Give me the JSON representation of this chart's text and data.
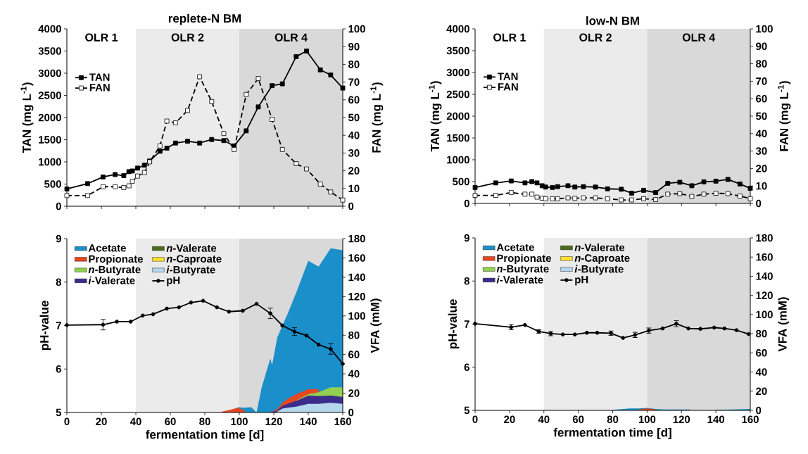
{
  "chart_data": [
    {
      "type": "line",
      "title": "replete-N BM",
      "ylabel": "TAN (mg L$^{-1}$)",
      "y2label": "FAN (mg L$^{-1}$)",
      "xlim": [
        0,
        160
      ],
      "tick_labels": "y",
      "xticks": [
        0,
        20,
        40,
        60,
        80,
        100,
        120,
        140,
        160
      ],
      "ylim": [
        0,
        4000
      ],
      "yticks": [
        0,
        500,
        1000,
        1500,
        2000,
        2500,
        3000,
        3500,
        4000
      ],
      "y2lim": [
        0,
        100
      ],
      "y2ticks": [
        0,
        10,
        20,
        30,
        40,
        50,
        60,
        70,
        80,
        90,
        100
      ],
      "legend": "top left",
      "annotations": [
        "OLR 1"
      ],
      "bands": [
        {
          "axis": "x",
          "from": 40,
          "to": 100,
          "label": "OLR 2",
          "color": "#ebebeb"
        },
        {
          "axis": "x",
          "from": 100,
          "to": 160,
          "label": "OLR 4",
          "color": "#d9d9d9"
        }
      ],
      "series": [
        {
          "name": "TAN",
          "color": "#000000",
          "marker": "square",
          "line_style": "solid",
          "x": [
            0,
            12,
            21,
            28,
            33,
            36,
            38,
            41,
            45,
            48,
            54,
            58,
            63,
            70,
            77,
            84,
            91,
            97,
            104,
            111,
            119,
            125,
            133,
            139,
            147,
            153,
            160
          ],
          "values": [
            390,
            510,
            660,
            715,
            690,
            780,
            795,
            860,
            925,
            1020,
            1240,
            1310,
            1425,
            1465,
            1425,
            1505,
            1480,
            1360,
            1700,
            2240,
            2720,
            2760,
            3375,
            3500,
            3075,
            2960,
            2665
          ]
        },
        {
          "name": "FAN",
          "color": "#000000",
          "marker": "square",
          "line_style": "dashed",
          "axis": "y2",
          "x": [
            0,
            12,
            21,
            28,
            33,
            36,
            38,
            41,
            45,
            48,
            54,
            58,
            63,
            70,
            77,
            84,
            91,
            97,
            104,
            111,
            119,
            125,
            133,
            139,
            147,
            153,
            160
          ],
          "values": [
            6,
            6,
            11,
            11,
            10.5,
            11.5,
            14,
            17,
            19,
            25,
            34,
            48,
            47,
            54,
            73,
            59,
            41,
            32,
            63,
            72,
            49,
            32,
            24,
            21,
            12.5,
            8,
            3.5
          ]
        }
      ]
    },
    {
      "type": "line",
      "title": "low-N BM",
      "ylabel": "TAN (mg L$^{-1}$)",
      "y2label": "FAN (mg L$^{-1}$)",
      "xlim": [
        0,
        160
      ],
      "tick_labels": "y",
      "xticks": [
        0,
        20,
        40,
        60,
        80,
        100,
        120,
        140,
        160
      ],
      "ylim": [
        0,
        4000
      ],
      "yticks": [
        0,
        500,
        1000,
        1500,
        2000,
        2500,
        3000,
        3500,
        4000
      ],
      "y2lim": [
        0,
        100
      ],
      "y2ticks": [
        0,
        10,
        20,
        30,
        40,
        50,
        60,
        70,
        80,
        90,
        100
      ],
      "legend": "top left",
      "annotations": [
        "OLR 1"
      ],
      "bands": [
        {
          "axis": "x",
          "from": 40,
          "to": 100,
          "label": "OLR 2",
          "color": "#ebebeb"
        },
        {
          "axis": "x",
          "from": 100,
          "to": 160,
          "label": "OLR 4",
          "color": "#d9d9d9"
        }
      ],
      "series": [
        {
          "name": "TAN",
          "color": "#000000",
          "marker": "square",
          "line_style": "solid",
          "x": [
            0,
            12,
            21,
            29,
            33,
            36,
            39,
            41,
            45,
            48,
            54,
            58,
            63,
            70,
            77,
            85,
            91,
            98,
            105,
            112,
            119,
            126,
            133,
            140,
            147,
            154,
            160
          ],
          "values": [
            365,
            470,
            515,
            470,
            500,
            470,
            405,
            375,
            365,
            385,
            405,
            375,
            385,
            375,
            335,
            325,
            235,
            300,
            250,
            460,
            485,
            405,
            495,
            510,
            550,
            445,
            345
          ]
        },
        {
          "name": "FAN",
          "color": "#000000",
          "marker": "square",
          "line_style": "dashed",
          "axis": "y2",
          "x": [
            0,
            12,
            21,
            29,
            33,
            36,
            39,
            41,
            45,
            48,
            54,
            58,
            63,
            70,
            77,
            85,
            91,
            98,
            105,
            112,
            119,
            126,
            133,
            140,
            147,
            154,
            160
          ],
          "values": [
            4.6,
            4.6,
            6.2,
            5.3,
            5.3,
            3.6,
            3.0,
            2.7,
            2.7,
            2.7,
            3.2,
            2.9,
            3.2,
            3.2,
            2.7,
            2.0,
            2.0,
            2.7,
            2.2,
            5.3,
            5.6,
            4.0,
            5.3,
            5.8,
            5.6,
            4.2,
            2.7
          ]
        }
      ]
    },
    {
      "type": "area",
      "stacked": true,
      "xlabel": "fermentation time [d]",
      "ylabel": "pH-value",
      "y2label": "VFA (mM)",
      "xlim": [
        0,
        160
      ],
      "xticks": [
        0,
        20,
        40,
        60,
        80,
        100,
        120,
        140,
        160
      ],
      "ylim": [
        5,
        9
      ],
      "yticks": [
        5,
        6,
        7,
        8,
        9
      ],
      "y2lim": [
        0,
        180
      ],
      "y2ticks": [
        0,
        20,
        40,
        60,
        80,
        100,
        120,
        140,
        160,
        180
      ],
      "legend": "top left",
      "bands": [
        {
          "axis": "x",
          "from": 40,
          "to": 100,
          "color": "#ebebeb"
        },
        {
          "axis": "x",
          "from": 100,
          "to": 160,
          "color": "#d9d9d9"
        }
      ],
      "x": [
        90,
        95,
        99,
        103,
        107,
        110,
        113,
        115,
        118,
        119,
        122,
        125,
        128,
        133,
        140,
        146,
        153,
        160
      ],
      "series": [
        {
          "name": "*i*-Butyrate",
          "color": "#b4d7ee",
          "axis": "y2",
          "values": [
            null,
            null,
            null,
            null,
            null,
            null,
            null,
            null,
            null,
            null,
            1,
            4,
            5,
            6,
            9,
            9,
            10,
            9
          ]
        },
        {
          "name": "*n*-Caproate",
          "color": "#ffe033",
          "axis": "y2",
          "values": [
            null,
            null,
            null,
            null,
            null,
            null,
            null,
            null,
            null,
            null,
            null,
            null,
            null,
            null,
            null,
            null,
            null,
            null
          ]
        },
        {
          "name": "*n*-Valerate",
          "color": "#4a6b1a",
          "axis": "y2",
          "values": [
            null,
            null,
            null,
            null,
            null,
            null,
            null,
            null,
            null,
            null,
            null,
            null,
            null,
            null,
            null,
            null,
            null,
            null
          ]
        },
        {
          "name": "*i*-Valerate",
          "color": "#3b2d8c",
          "axis": "y2",
          "values": [
            null,
            null,
            null,
            null,
            null,
            null,
            null,
            null,
            0.5,
            0.5,
            1,
            3,
            4,
            6,
            8.5,
            8,
            7.5,
            7
          ]
        },
        {
          "name": "*n*-Butyrate",
          "color": "#92d050",
          "axis": "y2",
          "values": [
            null,
            null,
            null,
            null,
            null,
            null,
            null,
            null,
            null,
            null,
            null,
            null,
            null,
            0.5,
            1.5,
            4,
            8.5,
            10
          ]
        },
        {
          "name": "Propionate",
          "color": "#e8461e",
          "axis": "y2",
          "values": [
            1,
            3,
            5,
            2,
            null,
            null,
            null,
            null,
            0.5,
            0.5,
            1.5,
            3,
            5,
            6.5,
            5,
            3,
            null,
            null
          ]
        },
        {
          "name": "Acetate",
          "color": "#1a8fc9",
          "axis": "y2",
          "values": [
            null,
            null,
            0.5,
            3,
            5.5,
            0,
            26,
            38,
            55,
            48,
            74,
            80,
            88,
            105,
            133,
            127,
            144,
            142
          ]
        },
        {
          "name": "pH",
          "type": "line",
          "color": "#000000",
          "marker": "circle",
          "line_style": "solid",
          "axis": "y",
          "x": [
            0,
            21,
            29,
            37,
            44,
            50,
            58,
            65,
            72,
            79,
            87,
            94,
            102,
            110,
            118,
            125,
            132,
            139,
            146,
            153,
            160
          ],
          "values": [
            7.01,
            7.02,
            7.09,
            7.09,
            7.23,
            7.26,
            7.39,
            7.42,
            7.53,
            7.57,
            7.42,
            7.32,
            7.34,
            7.5,
            7.28,
            7.0,
            6.86,
            6.77,
            6.56,
            6.46,
            6.12
          ],
          "errors": [
            null,
            0.12,
            null,
            null,
            null,
            null,
            null,
            null,
            null,
            null,
            null,
            null,
            null,
            null,
            0.12,
            null,
            0.09,
            null,
            null,
            0.12,
            null
          ]
        }
      ]
    },
    {
      "type": "area",
      "stacked": true,
      "xlabel": "fermentation time [d]",
      "ylabel": "pH-value",
      "y2label": "VFA (mM)",
      "xlim": [
        0,
        160
      ],
      "xticks": [
        0,
        20,
        40,
        60,
        80,
        100,
        120,
        140,
        160
      ],
      "ylim": [
        5,
        9
      ],
      "yticks": [
        5,
        6,
        7,
        8,
        9
      ],
      "y2lim": [
        0,
        180
      ],
      "y2ticks": [
        0,
        20,
        40,
        60,
        80,
        100,
        120,
        140,
        160,
        180
      ],
      "legend": "top left",
      "bands": [
        {
          "axis": "x",
          "from": 40,
          "to": 100,
          "color": "#ebebeb"
        },
        {
          "axis": "x",
          "from": 100,
          "to": 160,
          "color": "#d9d9d9"
        }
      ],
      "x": [
        80,
        90,
        95,
        100,
        105,
        110,
        118,
        125,
        130,
        140,
        150,
        160
      ],
      "series": [
        {
          "name": "*i*-Butyrate",
          "color": "#b4d7ee",
          "axis": "y2",
          "values": [
            null,
            null,
            null,
            null,
            null,
            null,
            null,
            null,
            null,
            null,
            null,
            null
          ]
        },
        {
          "name": "*n*-Caproate",
          "color": "#ffe033",
          "axis": "y2",
          "values": [
            null,
            null,
            null,
            null,
            null,
            null,
            null,
            null,
            null,
            null,
            null,
            null
          ]
        },
        {
          "name": "*n*-Valerate",
          "color": "#4a6b1a",
          "axis": "y2",
          "values": [
            null,
            null,
            null,
            null,
            null,
            null,
            null,
            null,
            null,
            null,
            null,
            null
          ]
        },
        {
          "name": "*i*-Valerate",
          "color": "#3b2d8c",
          "axis": "y2",
          "values": [
            null,
            null,
            null,
            null,
            null,
            null,
            null,
            null,
            null,
            null,
            null,
            null
          ]
        },
        {
          "name": "*n*-Butyrate",
          "color": "#92d050",
          "axis": "y2",
          "values": [
            null,
            null,
            null,
            null,
            null,
            null,
            null,
            null,
            null,
            null,
            null,
            null
          ]
        },
        {
          "name": "Propionate",
          "color": "#e8461e",
          "axis": "y2",
          "values": [
            null,
            null,
            1,
            2,
            1,
            null,
            null,
            null,
            null,
            null,
            null,
            null
          ]
        },
        {
          "name": "Acetate",
          "color": "#1a8fc9",
          "axis": "y2",
          "values": [
            0.5,
            2,
            1,
            0.5,
            0.5,
            1,
            1,
            1,
            null,
            0.5,
            1,
            1.5
          ]
        },
        {
          "name": "pH",
          "type": "line",
          "color": "#000000",
          "marker": "circle",
          "line_style": "solid",
          "axis": "y",
          "x": [
            0,
            21,
            29,
            37,
            44,
            51,
            58,
            65,
            71,
            79,
            86,
            93,
            101,
            109,
            117,
            124,
            131,
            139,
            145,
            152,
            159
          ],
          "values": [
            7.01,
            6.93,
            6.98,
            6.83,
            6.78,
            6.76,
            6.76,
            6.8,
            6.8,
            6.79,
            6.68,
            6.75,
            6.85,
            6.9,
            7.01,
            6.9,
            6.89,
            6.92,
            6.9,
            6.86,
            6.77
          ],
          "errors": [
            null,
            0.06,
            null,
            0.04,
            0.05,
            null,
            null,
            null,
            null,
            0.05,
            null,
            0.06,
            0.06,
            null,
            0.07,
            null,
            null,
            null,
            null,
            null,
            null
          ]
        }
      ]
    }
  ]
}
